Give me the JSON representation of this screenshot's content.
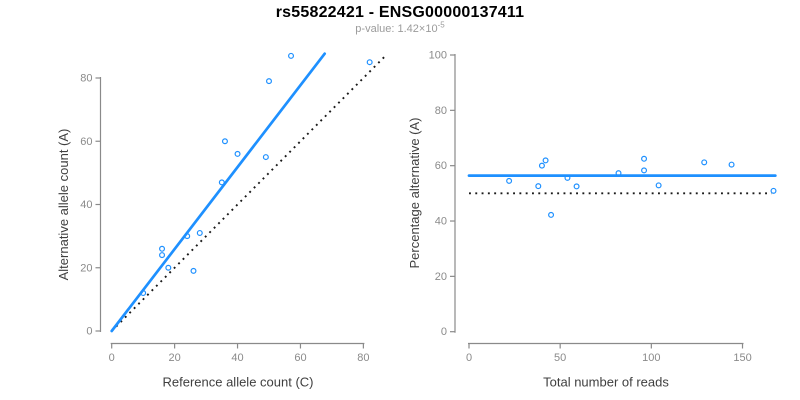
{
  "header": {
    "title": "rs55822421 - ENSG00000137411",
    "subtitle_prefix": "p-value: 1.42×10",
    "subtitle_exponent": "-5"
  },
  "colors": {
    "accent_blue": "#1E90FF",
    "dotted_black": "#1a1a1a",
    "axis_gray": "#8a8a8a",
    "tick_label_gray": "#8a8a8a",
    "axis_title_dark": "#3f3f3f",
    "title_black": "#000000",
    "subtitle_gray": "#9b9b9b",
    "background": "#ffffff"
  },
  "chart_data": [
    {
      "id": "allele-counts-scatter",
      "type": "scatter",
      "xlabel": "Reference allele count (C)",
      "ylabel": "Alternative allele count (A)",
      "xticks": [
        0,
        20,
        40,
        60,
        80
      ],
      "yticks": [
        0,
        20,
        40,
        60,
        80
      ],
      "xlim": [
        0,
        88
      ],
      "ylim": [
        0,
        88
      ],
      "grid": false,
      "marker": "open-circle",
      "points": [
        [
          10,
          12
        ],
        [
          16,
          24
        ],
        [
          16,
          26
        ],
        [
          18,
          20
        ],
        [
          24,
          30
        ],
        [
          26,
          19
        ],
        [
          28,
          31
        ],
        [
          35,
          47
        ],
        [
          36,
          60
        ],
        [
          40,
          56
        ],
        [
          49,
          55
        ],
        [
          50,
          79
        ],
        [
          57,
          87
        ],
        [
          82,
          85
        ]
      ],
      "lines": [
        {
          "name": "regression-line",
          "style": "solid",
          "color": "accent",
          "x1": 0,
          "y1": 0,
          "x2": 67.7,
          "y2": 87.7
        },
        {
          "name": "identity-line",
          "style": "dotted",
          "color": "black",
          "x1": 0,
          "y1": 0,
          "x2": 87.5,
          "y2": 87.5
        }
      ]
    },
    {
      "id": "percentage-vs-reads-scatter",
      "type": "scatter",
      "xlabel": "Total number of reads",
      "ylabel": "Percentage alternative (A)",
      "xticks": [
        0,
        50,
        100,
        150
      ],
      "yticks": [
        0,
        20,
        40,
        60,
        80,
        100
      ],
      "xlim": [
        0,
        172
      ],
      "ylim": [
        0,
        100
      ],
      "grid": false,
      "marker": "open-circle",
      "points": [
        [
          22,
          54.5
        ],
        [
          38,
          52.6
        ],
        [
          40,
          60.0
        ],
        [
          42,
          61.9
        ],
        [
          45,
          42.2
        ],
        [
          54,
          55.6
        ],
        [
          59,
          52.5
        ],
        [
          82,
          57.3
        ],
        [
          96,
          58.3
        ],
        [
          96,
          62.5
        ],
        [
          104,
          52.9
        ],
        [
          129,
          61.2
        ],
        [
          144,
          60.4
        ],
        [
          167,
          50.9
        ]
      ],
      "lines": [
        {
          "name": "mean-percentage-line",
          "style": "solid",
          "color": "accent",
          "y": 56.4,
          "x1": 0,
          "x2": 168
        },
        {
          "name": "fifty-percent-line",
          "style": "dotted",
          "color": "black",
          "y": 50,
          "x1": 0,
          "x2": 166
        }
      ]
    }
  ]
}
